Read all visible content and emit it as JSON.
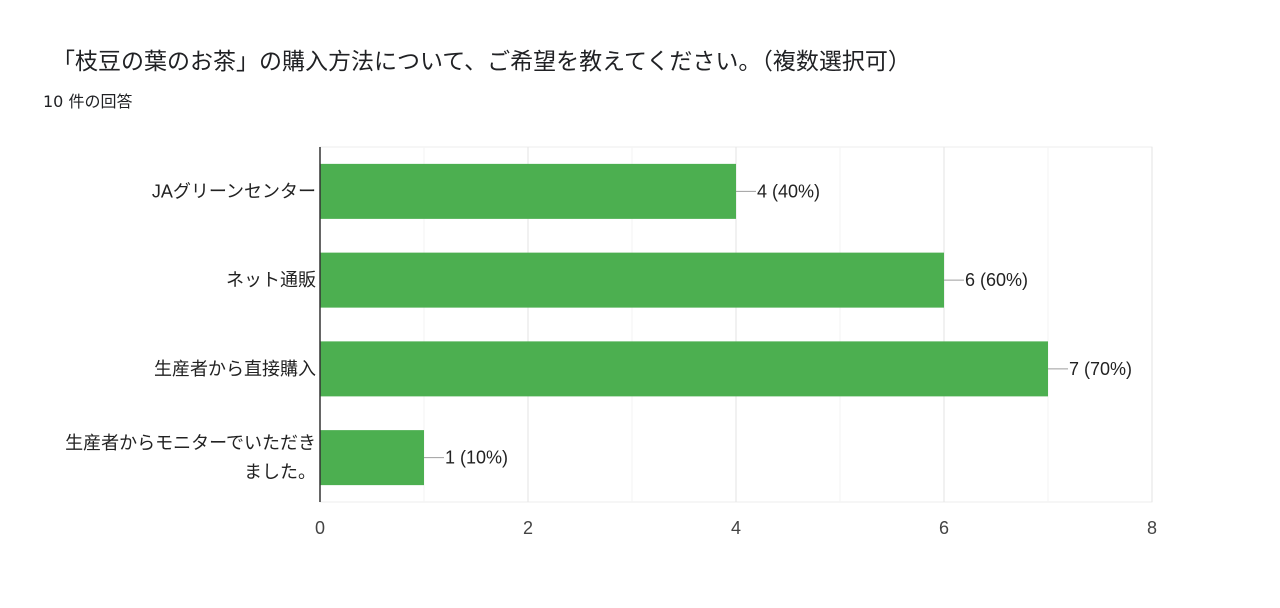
{
  "header": {
    "title": "「枝豆の葉のお茶」の購入方法について、ご希望を教えてください。（複数選択可）",
    "response_count": "10 件の回答"
  },
  "chart_data": {
    "type": "bar",
    "orientation": "horizontal",
    "categories": [
      [
        "JAグリーンセンター"
      ],
      [
        "ネット通販"
      ],
      [
        "生産者から直接購入"
      ],
      [
        "生産者からモニターでいただき",
        "ました。"
      ]
    ],
    "values": [
      4,
      6,
      7,
      1
    ],
    "data_labels": [
      "4 (40%)",
      "6 (60%)",
      "7 (70%)",
      "1 (10%)"
    ],
    "xlim": [
      0,
      8
    ],
    "ticks": [
      0,
      2,
      4,
      6,
      8
    ],
    "bar_color": "#4caf50",
    "grid": true
  }
}
